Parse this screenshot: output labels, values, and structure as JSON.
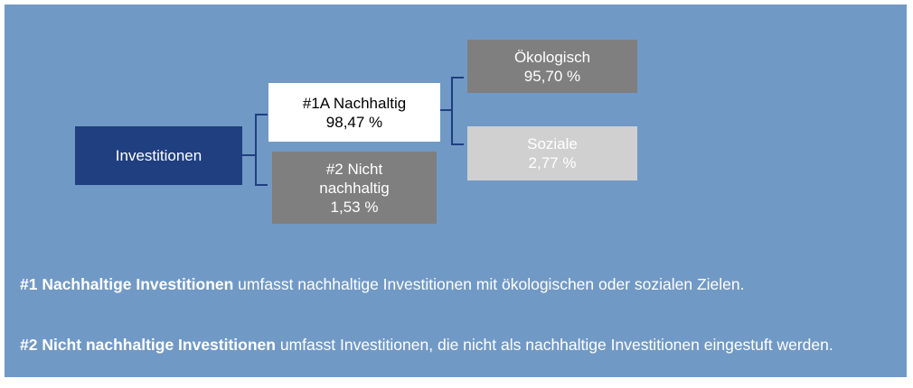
{
  "nodes": [
    {
      "lines": [
        "Investitionen"
      ]
    },
    {
      "lines": [
        "#1A Nachhaltig",
        "98,47 %"
      ]
    },
    {
      "lines": [
        "#2 Nicht",
        "nachhaltig",
        "1,53 %"
      ]
    },
    {
      "lines": [
        "Ökologisch",
        "95,70 %"
      ]
    },
    {
      "lines": [
        "Soziale",
        "2,77 %"
      ]
    }
  ],
  "notes": [
    {
      "bold": "#1 Nachhaltige Investitionen",
      "text": " umfasst nachhaltige Investitionen mit ökologischen oder sozialen Zielen."
    },
    {
      "bold": "#2 Nicht nachhaltige Investitionen",
      "text": " umfasst Investitionen, die nicht als nachhaltige Investitionen eingestuft werden."
    }
  ]
}
